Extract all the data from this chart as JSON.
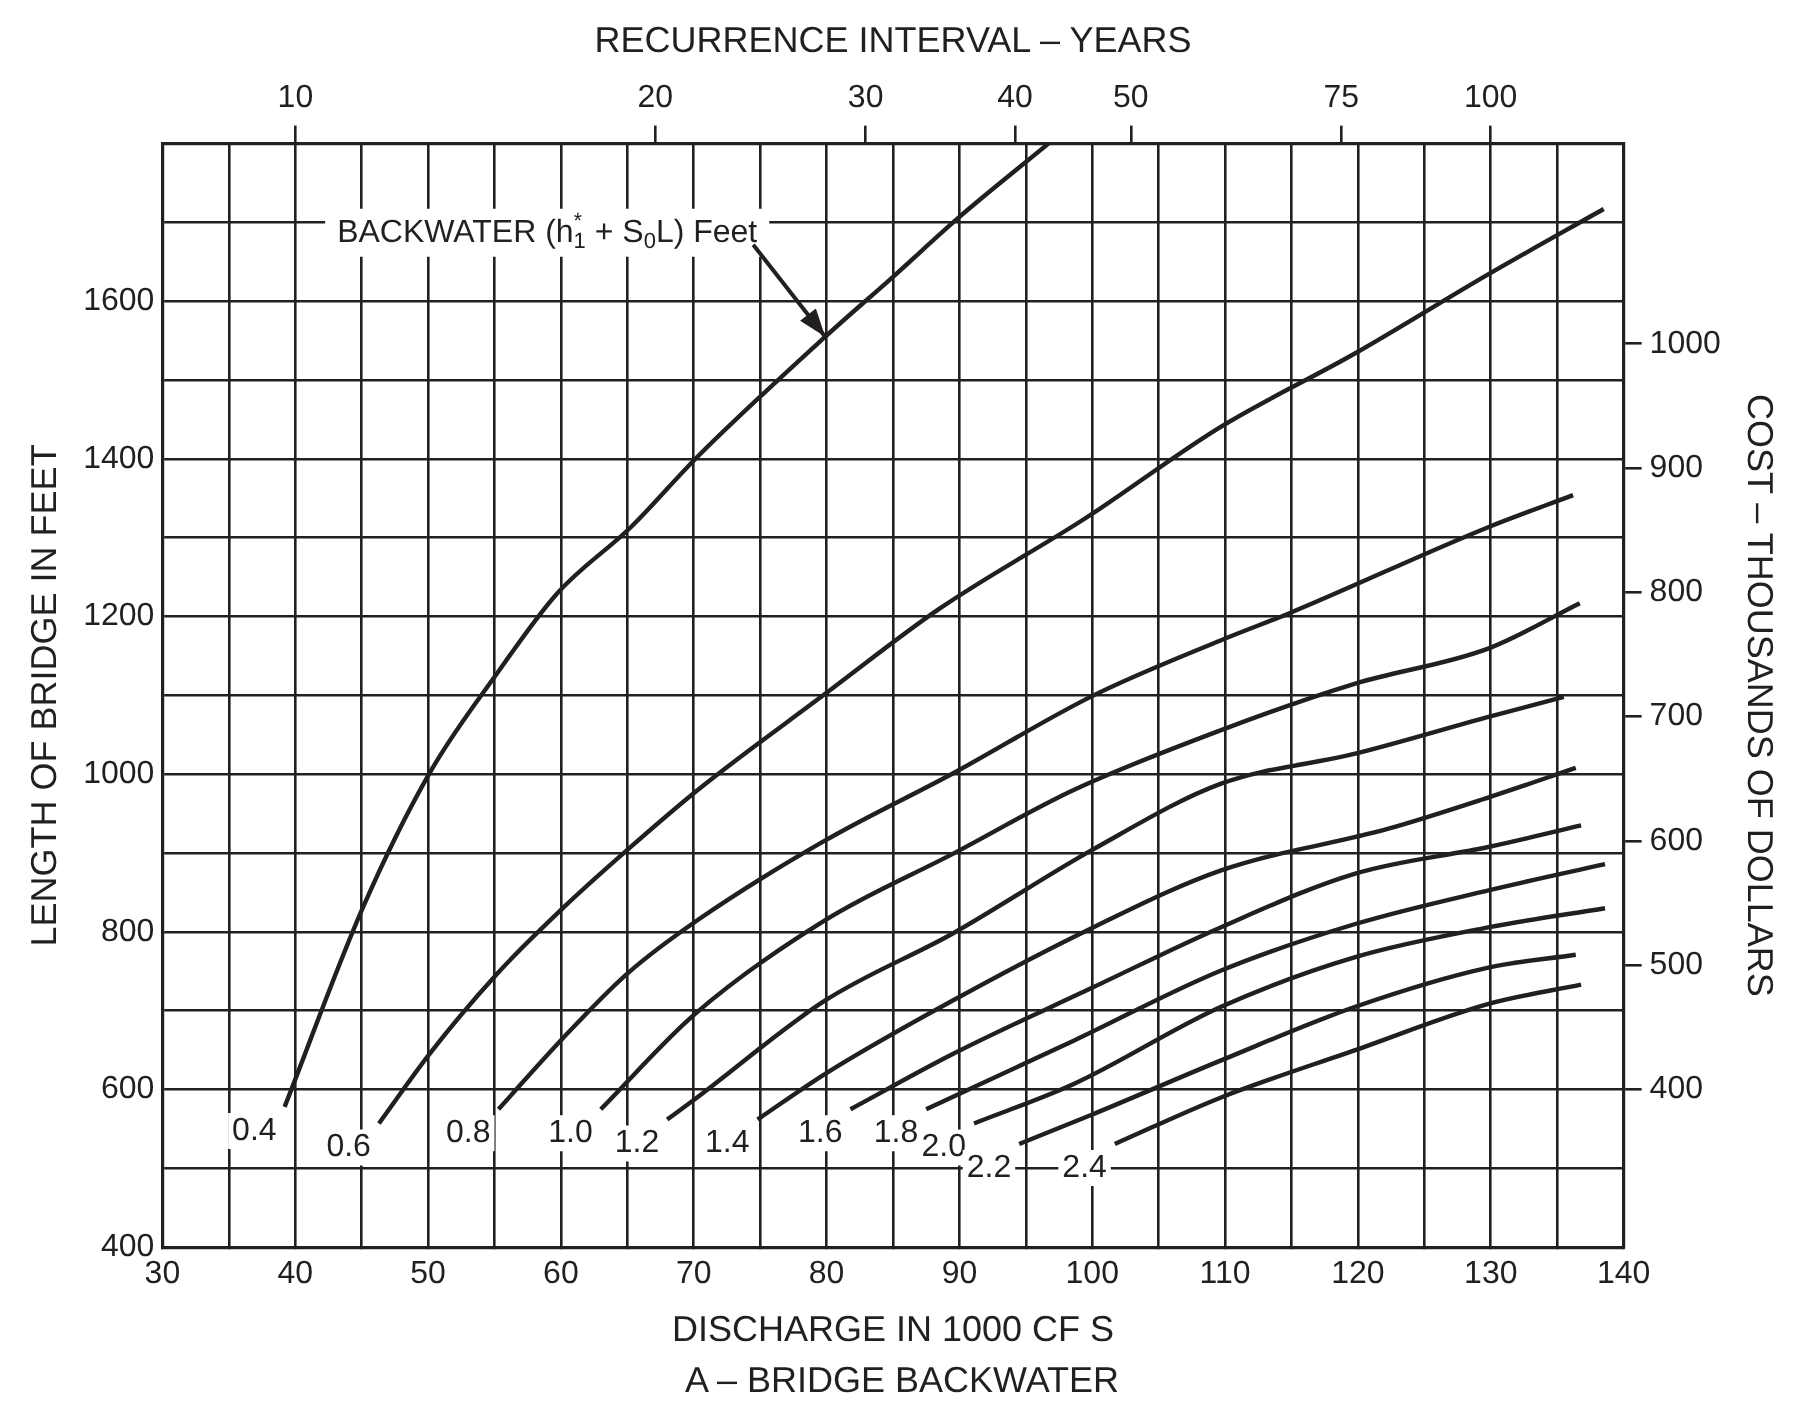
{
  "chart_data": {
    "type": "line",
    "title": "A – BRIDGE BACKWATER",
    "xlabel": "DISCHARGE IN 1000 CF S",
    "ylabel": "LENGTH OF BRIDGE IN FEET",
    "x2label": "RECURRENCE INTERVAL – YEARS",
    "y2label": "COST – THOUSANDS OF DOLLARS",
    "xlim": [
      30,
      140
    ],
    "xticks": [
      30,
      {
        "value": 35,
        "label": null
      },
      40,
      {
        "value": 45,
        "label": null
      },
      50,
      {
        "value": 55,
        "label": null
      },
      60,
      {
        "value": 65,
        "label": null
      },
      70,
      {
        "value": 75,
        "label": null
      },
      80,
      {
        "value": 85,
        "label": null
      },
      90,
      {
        "value": 95,
        "label": null
      },
      100,
      {
        "value": 105,
        "label": null
      },
      110,
      {
        "value": 115,
        "label": null
      },
      120,
      {
        "value": 125,
        "label": null
      },
      130,
      {
        "value": 135,
        "label": null
      },
      140
    ],
    "ylim": [
      400,
      1800
    ],
    "yticks": [
      400,
      {
        "value": 500,
        "label": null
      },
      600,
      {
        "value": 700,
        "label": null
      },
      800,
      {
        "value": 900,
        "label": null
      },
      1000,
      {
        "value": 1100,
        "label": null
      },
      1200,
      {
        "value": 1300,
        "label": null
      },
      1400,
      {
        "value": 1500,
        "label": null
      },
      1600,
      {
        "value": 1700,
        "label": null
      },
      {
        "value": 1800,
        "label": null
      }
    ],
    "x2lim": [
      7.74,
      129.2
    ],
    "x2ticks": [
      10,
      20,
      30,
      40,
      50,
      75,
      100
    ],
    "log": "x2",
    "y2lim": [
      273,
      1161
    ],
    "y2ticks": [
      400,
      500,
      600,
      700,
      800,
      900,
      1000
    ],
    "grid": true,
    "legend": false,
    "marker": "none",
    "line_style": "solid",
    "series": [
      {
        "name": "0.4",
        "color": "#231f20",
        "x": [
          39.2,
          45.1,
          50.1,
          55.2,
          59.7,
          65.3,
          70.3,
          79.9,
          85.0,
          90.0,
          96.7
        ],
        "values": [
          578,
          831,
          1001,
          1128,
          1229,
          1314,
          1403,
          1555,
          1631,
          1707,
          1800
        ]
      },
      {
        "name": "0.6",
        "color": "#231f20",
        "x": [
          46.3,
          50.1,
          55.2,
          60.2,
          65.0,
          70.3,
          79.9,
          88.5,
          99.6,
          109.7,
          119.8,
          129.9,
          138.5
        ],
        "values": [
          557,
          645,
          747,
          831,
          904,
          980,
          1102,
          1210,
          1326,
          1441,
          1534,
          1635,
          1717
        ]
      },
      {
        "name": "0.8",
        "color": "#231f20",
        "x": [
          55.3,
          60.2,
          65.0,
          70.3,
          79.9,
          89.5,
          100.1,
          109.7,
          114.8,
          129.9,
          136.2
        ],
        "values": [
          575,
          666,
          747,
          815,
          916,
          1001,
          1100,
          1170,
          1204,
          1314,
          1354
        ]
      },
      {
        "name": "1.0",
        "color": "#231f20",
        "x": [
          63.0,
          70.1,
          79.9,
          89.5,
          98.6,
          109.7,
          119.8,
          129.9,
          136.7
        ],
        "values": [
          575,
          696,
          815,
          899,
          980,
          1056,
          1115,
          1160,
          1217
        ]
      },
      {
        "name": "1.2",
        "color": "#231f20",
        "x": [
          68.0,
          70.1,
          79.9,
          89.5,
          100.1,
          109.7,
          119.8,
          129.9,
          135.5
        ],
        "values": [
          562,
          588,
          713,
          798,
          905,
          988,
          1026,
          1073,
          1098
        ]
      },
      {
        "name": "1.4",
        "color": "#231f20",
        "x": [
          74.8,
          79.9,
          89.5,
          100.1,
          109.7,
          122.3,
          129.9,
          136.4
        ],
        "values": [
          562,
          620,
          713,
          806,
          878,
          931,
          971,
          1008
        ]
      },
      {
        "name": "1.6",
        "color": "#231f20",
        "x": [
          81.8,
          89.5,
          100.1,
          109.7,
          119.8,
          129.9,
          136.8
        ],
        "values": [
          575,
          645,
          730,
          806,
          874,
          908,
          935
        ]
      },
      {
        "name": "1.8",
        "color": "#231f20",
        "x": [
          87.5,
          98.6,
          109.7,
          119.8,
          129.9,
          138.6
        ],
        "values": [
          575,
          662,
          751,
          810,
          853,
          886
        ]
      },
      {
        "name": "2.0",
        "color": "#231f20",
        "x": [
          91.1,
          98.6,
          109.7,
          119.8,
          129.9,
          138.6
        ],
        "values": [
          557,
          607,
          705,
          768,
          806,
          830
        ]
      },
      {
        "name": "2.2",
        "color": "#231f20",
        "x": [
          94.5,
          100.1,
          109.7,
          119.8,
          129.9,
          136.4
        ],
        "values": [
          531,
          569,
          637,
          705,
          755,
          771
        ]
      },
      {
        "name": "2.4",
        "color": "#231f20",
        "x": [
          101.7,
          109.7,
          119.8,
          129.9,
          136.8
        ],
        "values": [
          531,
          590,
          650,
          709,
          733
        ]
      }
    ],
    "annotations": [
      {
        "text": "BACKWATER (h$_{1}$$^{*}$ + S$_{0}$L) Feet",
        "x": 79.9,
        "y": 1555
      }
    ]
  }
}
